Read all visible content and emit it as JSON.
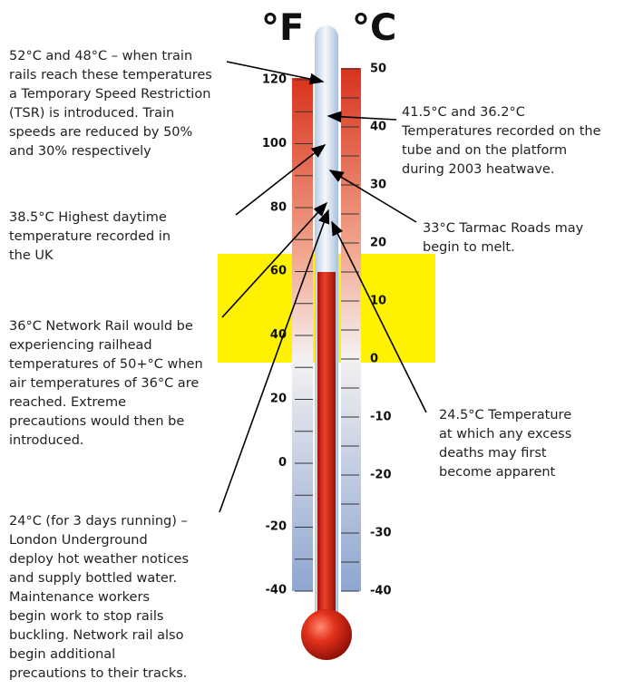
{
  "scale": {
    "f_unit": "°F",
    "c_unit": "°C",
    "f_ticks": [
      "120",
      "100",
      "80",
      "60",
      "40",
      "20",
      "0",
      "-20",
      "-40"
    ],
    "c_ticks": [
      "50",
      "40",
      "30",
      "20",
      "10",
      "0",
      "-10",
      "-20",
      "-30",
      "-40"
    ]
  },
  "annotations": [
    {
      "lines": [
        "52°C and 48°C – when train",
        "rails reach these temperatures",
        "a Temporary Speed Restriction",
        "(TSR) is introduced. Train",
        "speeds are reduced by 50%",
        "and 30% respectively"
      ]
    },
    {
      "lines": [
        "41.5°C and 36.2°C",
        "Temperatures recorded on the",
        "tube and on the platform",
        "during 2003 heatwave."
      ]
    },
    {
      "lines": [
        "38.5°C Highest daytime",
        "temperature recorded in",
        "the UK"
      ]
    },
    {
      "lines": [
        "33°C Tarmac Roads may",
        "begin to melt."
      ]
    },
    {
      "lines": [
        "36°C Network Rail would be",
        "experiencing railhead",
        "temperatures of 50+°C when",
        "air temperatures of 36°C are",
        "reached. Extreme",
        "precautions would then be",
        "introduced."
      ]
    },
    {
      "lines": [
        "24.5°C Temperature",
        "at which any excess",
        "deaths may first",
        "become apparent"
      ]
    },
    {
      "lines": [
        "24°C (for 3 days running) –",
        "London Underground",
        "deploy hot weather notices",
        "and supply bottled water.",
        "Maintenance workers",
        "begin work to stop rails",
        "buckling. Network rail also",
        "begin additional",
        "precautions to their tracks."
      ]
    }
  ]
}
